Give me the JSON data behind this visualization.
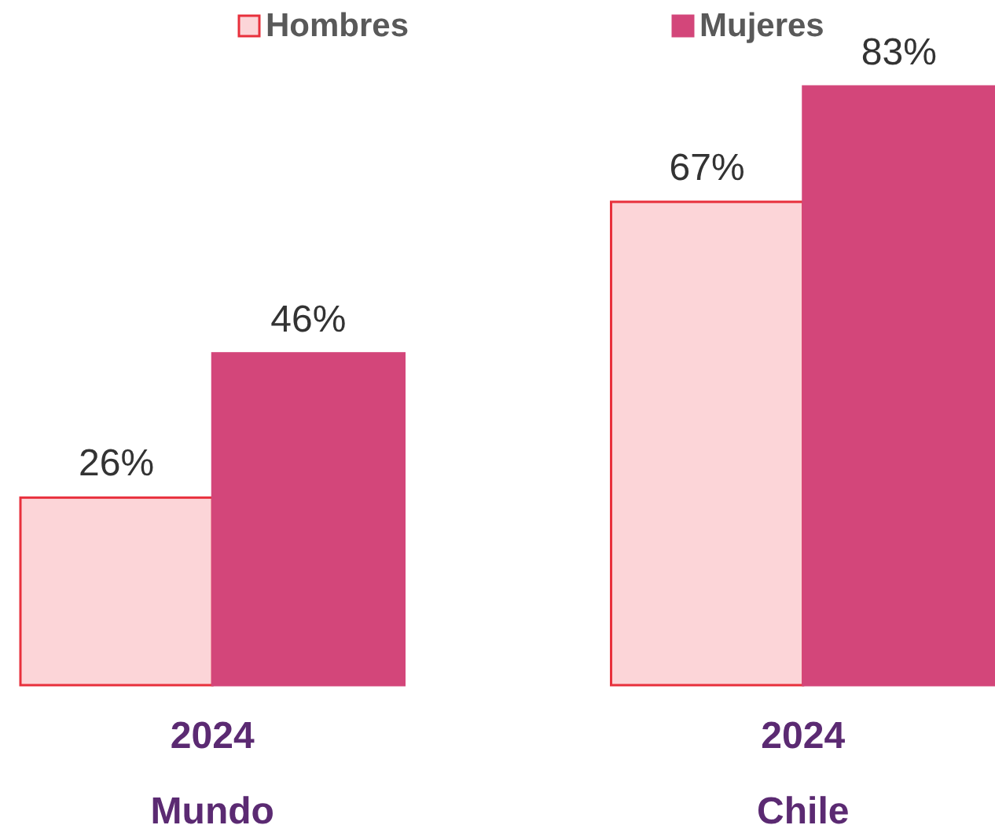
{
  "chart_data": {
    "type": "bar",
    "categories": [
      "2024",
      "2024"
    ],
    "series": [
      {
        "name": "Hombres",
        "color": "#fcd5d8",
        "values": [
          26,
          67
        ],
        "value_labels": [
          "26%",
          "67%"
        ]
      },
      {
        "name": "Mujeres",
        "color": "#d3467a",
        "values": [
          46,
          83
        ],
        "value_labels": [
          "46%",
          "83%"
        ]
      }
    ],
    "annotations": [
      "Mundo",
      "Chile"
    ],
    "legend": "top",
    "grid": false
  }
}
